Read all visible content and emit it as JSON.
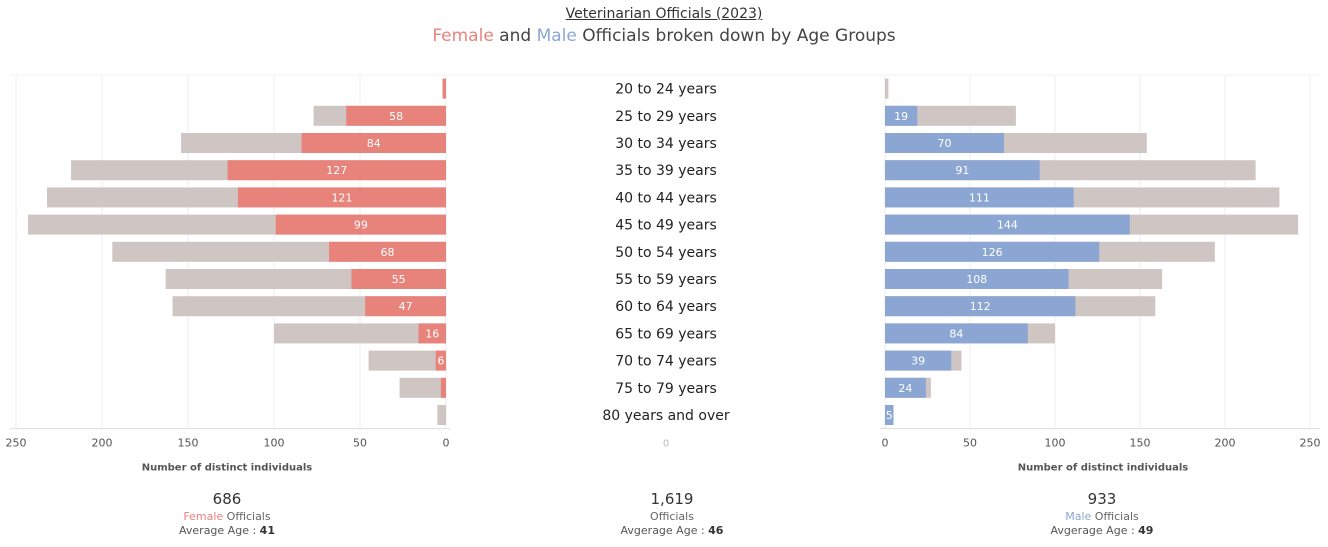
{
  "header": {
    "title": "Veterinarian Officials (2023)",
    "subtitle_female": "Female",
    "subtitle_and": " and ",
    "subtitle_male": "Male",
    "subtitle_rest": "  Officials broken down by Age Groups"
  },
  "colors": {
    "female": "#E8837C",
    "male": "#8CA6D3",
    "reference": "#CFC6C4"
  },
  "chart_data": {
    "type": "bar",
    "categories": [
      "20 to 24 years",
      "25 to 29 years",
      "30 to 34 years",
      "35 to 39 years",
      "40 to 44 years",
      "45 to 49 years",
      "50 to 54 years",
      "55 to 59 years",
      "60 to 64 years",
      "65 to 69 years",
      "70 to 74 years",
      "75 to 79 years",
      "80 years and over"
    ],
    "series": [
      {
        "name": "Female",
        "values": [
          2,
          58,
          84,
          127,
          121,
          99,
          68,
          55,
          47,
          16,
          6,
          3,
          0
        ]
      },
      {
        "name": "Male",
        "values": [
          0,
          19,
          70,
          91,
          111,
          144,
          126,
          108,
          112,
          84,
          39,
          24,
          5
        ]
      }
    ],
    "totals": [
      2,
      77,
      154,
      218,
      232,
      243,
      194,
      163,
      159,
      100,
      45,
      27,
      5
    ],
    "data_labels": [
      "",
      "58",
      "84",
      "127",
      "121",
      "99",
      "68",
      "55",
      "47",
      "16",
      "6",
      "",
      "",
      "",
      "19",
      "70",
      "91",
      "111",
      "144",
      "126",
      "108",
      "112",
      "84",
      "39",
      "24",
      "5"
    ],
    "left_axis": {
      "ticks": [
        "250",
        "200",
        "150",
        "100",
        "50",
        "0"
      ],
      "xlabel": "Number of distinct individuals",
      "xlim": [
        250,
        0
      ]
    },
    "center_axis": {
      "ticks": [
        "0"
      ]
    },
    "right_axis": {
      "ticks": [
        "0",
        "50",
        "100",
        "150",
        "200",
        "250"
      ],
      "xlabel": "Number of distinct individuals",
      "xlim": [
        0,
        250
      ]
    },
    "grid": true
  },
  "summary": {
    "female": {
      "total": "686",
      "label_colored": "Female",
      "label_rest": " Officials",
      "avg_label": "Average Age : ",
      "avg_value": "41"
    },
    "all": {
      "total": "1,619",
      "label": "Officials",
      "avg_label": "Avgerage Age : ",
      "avg_value": "46"
    },
    "male": {
      "total": "933",
      "label_colored": "Male",
      "label_rest": " Officials",
      "avg_label": "Avgerage Age : ",
      "avg_value": "49"
    }
  }
}
